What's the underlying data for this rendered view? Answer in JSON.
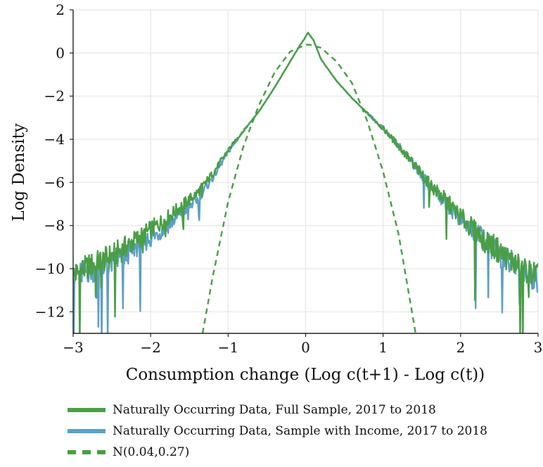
{
  "chart_data": {
    "type": "line",
    "xlabel": "Consumption change (Log c(t+1) - Log c(t))",
    "ylabel": "Log Density",
    "xlim": [
      -3,
      3
    ],
    "ylim": [
      -13,
      2
    ],
    "x_ticks": [
      -3,
      -2,
      -1,
      0,
      1,
      2,
      3
    ],
    "x_tick_labels": [
      "−3",
      "−2",
      "−1",
      "0",
      "1",
      "2",
      "3"
    ],
    "y_ticks": [
      -12,
      -10,
      -8,
      -6,
      -4,
      -2,
      0,
      2
    ],
    "y_tick_labels": [
      "−12",
      "−10",
      "−8",
      "−6",
      "−4",
      "−2",
      "0",
      "2"
    ],
    "grid": true,
    "legend_position": "below",
    "series": [
      {
        "name": "Naturally Occurring Data, Full Sample, 2017 to 2018",
        "color": "#4a9e45",
        "style": "solid",
        "x": [
          -3.0,
          -2.8,
          -2.6,
          -2.4,
          -2.2,
          -2.0,
          -1.8,
          -1.6,
          -1.4,
          -1.2,
          -1.0,
          -0.8,
          -0.6,
          -0.4,
          -0.2,
          -0.1,
          0.0,
          0.03,
          0.1,
          0.2,
          0.4,
          0.6,
          0.8,
          1.0,
          1.2,
          1.4,
          1.6,
          1.8,
          2.0,
          2.2,
          2.4,
          2.6,
          2.8,
          3.0
        ],
        "y": [
          -10.3,
          -9.9,
          -9.6,
          -9.2,
          -8.7,
          -8.2,
          -7.7,
          -7.1,
          -6.5,
          -5.6,
          -4.5,
          -3.6,
          -2.7,
          -1.6,
          -0.4,
          0.2,
          0.75,
          0.95,
          0.6,
          -0.3,
          -1.3,
          -2.1,
          -2.8,
          -3.5,
          -4.3,
          -5.2,
          -6.1,
          -6.8,
          -7.6,
          -8.3,
          -8.9,
          -9.5,
          -10.0,
          -10.3
        ]
      },
      {
        "name": "Naturally Occurring Data, Sample with Income, 2017 to 2018",
        "color": "#5d9fc6",
        "style": "solid",
        "x": [
          -3.0,
          -2.8,
          -2.6,
          -2.4,
          -2.2,
          -2.0,
          -1.8,
          -1.6,
          -1.4,
          -1.2,
          -1.0,
          -0.8,
          -0.6,
          -0.4,
          -0.2,
          -0.1,
          0.0,
          0.03,
          0.1,
          0.2,
          0.4,
          0.6,
          0.8,
          1.0,
          1.2,
          1.4,
          1.6,
          1.8,
          2.0,
          2.2,
          2.4,
          2.6,
          2.8,
          3.0
        ],
        "y": [
          -10.4,
          -10.1,
          -9.9,
          -9.6,
          -9.0,
          -8.6,
          -8.1,
          -7.4,
          -6.8,
          -5.8,
          -4.6,
          -3.6,
          -2.7,
          -1.6,
          -0.4,
          0.2,
          0.75,
          0.95,
          0.6,
          -0.3,
          -1.3,
          -2.1,
          -2.8,
          -3.5,
          -4.3,
          -5.2,
          -6.1,
          -6.9,
          -7.7,
          -8.4,
          -9.0,
          -9.6,
          -10.1,
          -10.5
        ]
      },
      {
        "name": "N(0.04,0.27)",
        "color": "#4a9e45",
        "style": "dashed",
        "x": [
          -1.33,
          -1.2,
          -1.0,
          -0.8,
          -0.6,
          -0.4,
          -0.2,
          0.0,
          0.04,
          0.2,
          0.4,
          0.6,
          0.8,
          1.0,
          1.2,
          1.42
        ],
        "y": [
          -13.0,
          -10.4,
          -6.9,
          -4.3,
          -2.4,
          -0.9,
          0.06,
          0.38,
          0.39,
          0.24,
          -0.4,
          -1.4,
          -3.2,
          -5.5,
          -8.4,
          -13.0
        ]
      }
    ]
  }
}
